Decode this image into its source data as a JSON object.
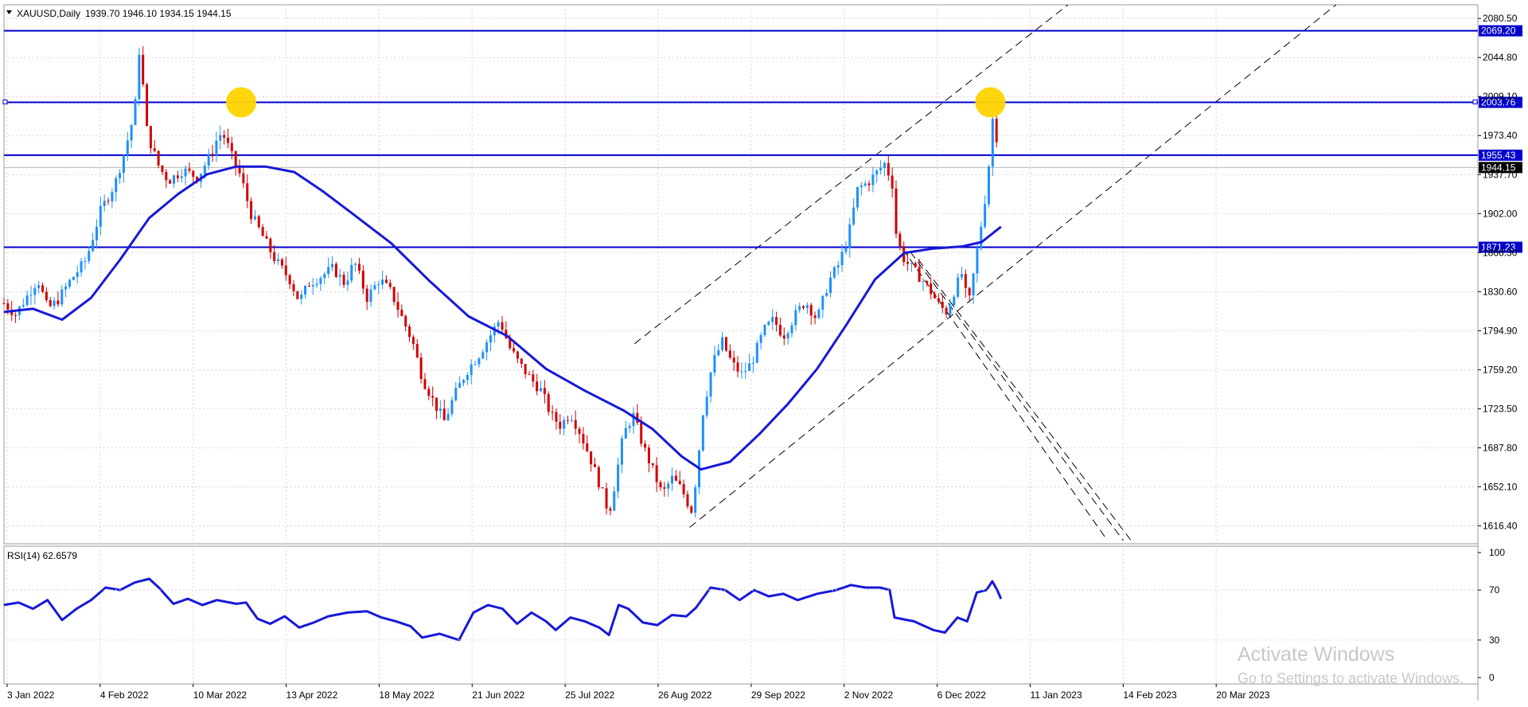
{
  "chart_header": {
    "symbol_timeframe": "XAUUSD,Daily",
    "ohlc": "1939.70 1946.10 1934.15 1944.15"
  },
  "price_axis": {
    "ticks": [
      "2080.50",
      "2044.80",
      "2009.10",
      "1973.40",
      "1937.70",
      "1902.00",
      "1866.30",
      "1830.60",
      "1794.90",
      "1759.20",
      "1723.50",
      "1687.80",
      "1652.10",
      "1616.40"
    ]
  },
  "price_lines": [
    {
      "label": "2069.20",
      "value": 2069.2
    },
    {
      "label": "2003.76",
      "value": 2003.76
    },
    {
      "label": "1955.43",
      "value": 1955.43
    },
    {
      "label": "1871.23",
      "value": 1871.23
    }
  ],
  "current_price": {
    "label": "1944.15",
    "value": 1944.15
  },
  "rsi_panel": {
    "label": "RSI(14) 62.6579",
    "ticks": [
      "100",
      "70",
      "30",
      "0"
    ]
  },
  "time_axis": {
    "labels": [
      "3 Jan 2022",
      "4 Feb 2022",
      "10 Mar 2022",
      "13 Apr 2022",
      "18 May 2022",
      "21 Jun 2022",
      "25 Jul 2022",
      "26 Aug 2022",
      "29 Sep 2022",
      "2 Nov 2022",
      "6 Dec 2022",
      "11 Jan 2023",
      "14 Feb 2023",
      "20 Mar 2023"
    ]
  },
  "watermark": {
    "line1": "Activate Windows",
    "line2": "Go to Settings to activate Windows."
  },
  "colors": {
    "bull": "#1e90ff",
    "bear": "#d00000",
    "ma": "#1818d8",
    "level": "#0000cc",
    "rsi": "#1818d8",
    "highlight": "#ffd400",
    "grid": "#d6d6d6"
  },
  "chart_data": {
    "type": "candlestick",
    "series": [
      {
        "name": "XAUUSD",
        "anchors": [
          [
            0,
            1820
          ],
          [
            12,
            1810
          ],
          [
            25,
            1828
          ],
          [
            35,
            1842
          ],
          [
            45,
            1815
          ],
          [
            55,
            1822
          ],
          [
            68,
            1840
          ],
          [
            85,
            1860
          ],
          [
            100,
            1905
          ],
          [
            115,
            1930
          ],
          [
            125,
            1960
          ],
          [
            135,
            1995
          ],
          [
            140,
            2055
          ],
          [
            148,
            1975
          ],
          [
            160,
            1945
          ],
          [
            170,
            1932
          ],
          [
            185,
            1942
          ],
          [
            200,
            1935
          ],
          [
            215,
            1958
          ],
          [
            222,
            1975
          ],
          [
            228,
            1972
          ],
          [
            235,
            1955
          ],
          [
            245,
            1935
          ],
          [
            255,
            1902
          ],
          [
            268,
            1880
          ],
          [
            280,
            1860
          ],
          [
            295,
            1842
          ],
          [
            305,
            1822
          ],
          [
            315,
            1838
          ],
          [
            328,
            1845
          ],
          [
            340,
            1852
          ],
          [
            352,
            1838
          ],
          [
            362,
            1858
          ],
          [
            375,
            1825
          ],
          [
            388,
            1842
          ],
          [
            400,
            1830
          ],
          [
            412,
            1805
          ],
          [
            422,
            1785
          ],
          [
            432,
            1752
          ],
          [
            445,
            1728
          ],
          [
            455,
            1712
          ],
          [
            465,
            1735
          ],
          [
            478,
            1758
          ],
          [
            490,
            1772
          ],
          [
            502,
            1790
          ],
          [
            512,
            1805
          ],
          [
            522,
            1780
          ],
          [
            532,
            1765
          ],
          [
            545,
            1750
          ],
          [
            555,
            1740
          ],
          [
            565,
            1718
          ],
          [
            575,
            1708
          ],
          [
            585,
            1720
          ],
          [
            595,
            1702
          ],
          [
            605,
            1680
          ],
          [
            615,
            1655
          ],
          [
            625,
            1628
          ],
          [
            630,
            1650
          ],
          [
            640,
            1700
          ],
          [
            650,
            1718
          ],
          [
            660,
            1690
          ],
          [
            670,
            1668
          ],
          [
            680,
            1645
          ],
          [
            690,
            1660
          ],
          [
            700,
            1650
          ],
          [
            710,
            1630
          ],
          [
            715,
            1660
          ],
          [
            722,
            1720
          ],
          [
            732,
            1765
          ],
          [
            742,
            1785
          ],
          [
            752,
            1765
          ],
          [
            762,
            1755
          ],
          [
            772,
            1765
          ],
          [
            785,
            1795
          ],
          [
            795,
            1805
          ],
          [
            805,
            1790
          ],
          [
            818,
            1810
          ],
          [
            828,
            1822
          ],
          [
            840,
            1805
          ],
          [
            852,
            1840
          ],
          [
            862,
            1855
          ],
          [
            872,
            1880
          ],
          [
            882,
            1925
          ],
          [
            892,
            1930
          ],
          [
            902,
            1940
          ],
          [
            910,
            1948
          ],
          [
            918,
            1928
          ],
          [
            922,
            1880
          ],
          [
            930,
            1860
          ],
          [
            940,
            1850
          ],
          [
            950,
            1840
          ],
          [
            958,
            1830
          ],
          [
            966,
            1818
          ],
          [
            974,
            1812
          ],
          [
            982,
            1832
          ],
          [
            990,
            1848
          ],
          [
            996,
            1815
          ],
          [
            1004,
            1860
          ],
          [
            1010,
            1895
          ],
          [
            1016,
            1930
          ],
          [
            1021,
            1990
          ],
          [
            1025,
            1975
          ],
          [
            1029,
            1944
          ]
        ]
      }
    ],
    "moving_average": [
      [
        0,
        1812
      ],
      [
        30,
        1815
      ],
      [
        60,
        1805
      ],
      [
        90,
        1825
      ],
      [
        120,
        1860
      ],
      [
        150,
        1898
      ],
      [
        180,
        1920
      ],
      [
        210,
        1938
      ],
      [
        240,
        1945
      ],
      [
        270,
        1945
      ],
      [
        300,
        1940
      ],
      [
        330,
        1922
      ],
      [
        360,
        1902
      ],
      [
        400,
        1875
      ],
      [
        440,
        1840
      ],
      [
        480,
        1808
      ],
      [
        520,
        1790
      ],
      [
        560,
        1760
      ],
      [
        600,
        1740
      ],
      [
        640,
        1722
      ],
      [
        670,
        1705
      ],
      [
        700,
        1680
      ],
      [
        720,
        1668
      ],
      [
        750,
        1675
      ],
      [
        780,
        1700
      ],
      [
        810,
        1728
      ],
      [
        840,
        1760
      ],
      [
        870,
        1800
      ],
      [
        900,
        1842
      ],
      [
        930,
        1866
      ],
      [
        960,
        1870
      ],
      [
        990,
        1872
      ],
      [
        1010,
        1876
      ],
      [
        1030,
        1890
      ]
    ],
    "rsi": [
      [
        0,
        58
      ],
      [
        15,
        60
      ],
      [
        30,
        55
      ],
      [
        45,
        62
      ],
      [
        60,
        46
      ],
      [
        75,
        55
      ],
      [
        90,
        62
      ],
      [
        105,
        72
      ],
      [
        120,
        70
      ],
      [
        135,
        76
      ],
      [
        150,
        79
      ],
      [
        160,
        72
      ],
      [
        175,
        59
      ],
      [
        190,
        63
      ],
      [
        205,
        58
      ],
      [
        220,
        62
      ],
      [
        240,
        59
      ],
      [
        250,
        60
      ],
      [
        262,
        47
      ],
      [
        275,
        43
      ],
      [
        290,
        49
      ],
      [
        305,
        40
      ],
      [
        320,
        44
      ],
      [
        335,
        49
      ],
      [
        355,
        52
      ],
      [
        375,
        53
      ],
      [
        390,
        48
      ],
      [
        405,
        45
      ],
      [
        420,
        41
      ],
      [
        432,
        32
      ],
      [
        450,
        35
      ],
      [
        470,
        30
      ],
      [
        485,
        52
      ],
      [
        500,
        58
      ],
      [
        515,
        55
      ],
      [
        530,
        43
      ],
      [
        545,
        52
      ],
      [
        560,
        45
      ],
      [
        570,
        38
      ],
      [
        585,
        48
      ],
      [
        600,
        45
      ],
      [
        615,
        40
      ],
      [
        625,
        34
      ],
      [
        635,
        58
      ],
      [
        645,
        55
      ],
      [
        660,
        44
      ],
      [
        675,
        42
      ],
      [
        690,
        50
      ],
      [
        705,
        49
      ],
      [
        715,
        56
      ],
      [
        730,
        72
      ],
      [
        745,
        70
      ],
      [
        760,
        62
      ],
      [
        775,
        70
      ],
      [
        790,
        65
      ],
      [
        805,
        67
      ],
      [
        820,
        62
      ],
      [
        840,
        67
      ],
      [
        860,
        70
      ],
      [
        875,
        74
      ],
      [
        890,
        72
      ],
      [
        905,
        72
      ],
      [
        915,
        70
      ],
      [
        920,
        48
      ],
      [
        940,
        45
      ],
      [
        960,
        38
      ],
      [
        972,
        36
      ],
      [
        985,
        48
      ],
      [
        995,
        45
      ],
      [
        1005,
        68
      ],
      [
        1015,
        70
      ],
      [
        1021,
        77
      ],
      [
        1026,
        70
      ],
      [
        1030,
        63
      ]
    ],
    "annotations": [
      {
        "type": "circle",
        "color": "#ffd400",
        "time": 245,
        "price": 2003.76
      },
      {
        "type": "circle",
        "color": "#ffd400",
        "time": 1019,
        "price": 2003.76
      }
    ],
    "ylim": [
      1600,
      2093
    ],
    "rsi_ylim": [
      0,
      100
    ]
  }
}
